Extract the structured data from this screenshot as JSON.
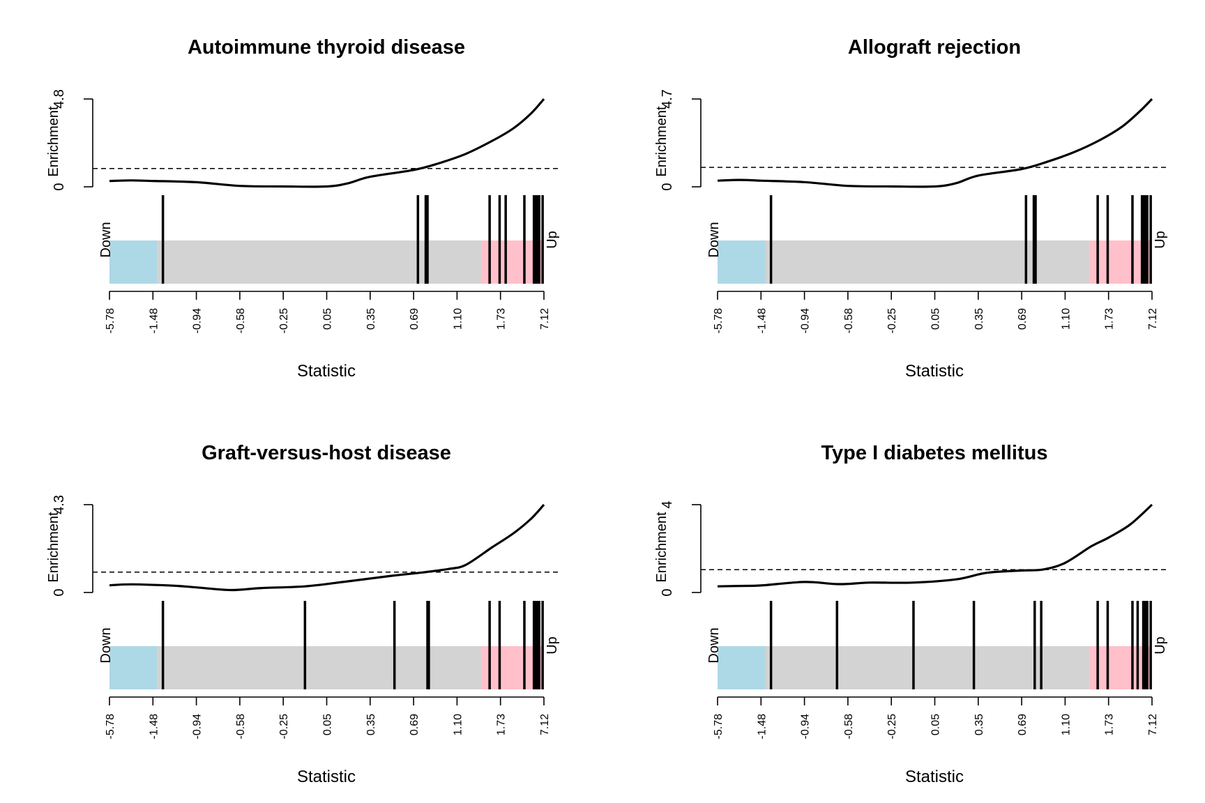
{
  "colors": {
    "down": "#add8e6",
    "middle": "#d3d3d3",
    "up": "#ffc0cb",
    "ink": "#000000"
  },
  "chart_data": [
    {
      "type": "barcode",
      "title": "Autoimmune thyroid disease",
      "ylabel": "Enrichment",
      "xlabel": "Statistic",
      "ylim": [
        0,
        4.8
      ],
      "ytick_labels": [
        "0",
        "4.8"
      ],
      "xtick_labels": [
        "-5.78",
        "-1.48",
        "-0.94",
        "-0.58",
        "-0.25",
        "0.05",
        "0.35",
        "0.69",
        "1.10",
        "1.73",
        "7.12"
      ],
      "down_label": "Down",
      "up_label": "Up",
      "down_end_rank": 0.11,
      "up_start_rank": 0.857,
      "baseline": 1.0,
      "curve": [
        [
          0,
          0.32
        ],
        [
          0.05,
          0.35
        ],
        [
          0.1,
          0.32
        ],
        [
          0.2,
          0.25
        ],
        [
          0.3,
          0.05
        ],
        [
          0.4,
          0.02
        ],
        [
          0.5,
          0.02
        ],
        [
          0.55,
          0.2
        ],
        [
          0.6,
          0.55
        ],
        [
          0.7,
          0.92
        ],
        [
          0.76,
          1.3
        ],
        [
          0.82,
          1.8
        ],
        [
          0.88,
          2.5
        ],
        [
          0.93,
          3.2
        ],
        [
          0.97,
          4.0
        ],
        [
          1.0,
          4.8
        ]
      ],
      "gene_ranks": [
        0.123,
        0.71,
        0.728,
        0.732,
        0.875,
        0.898,
        0.912,
        0.955,
        0.977,
        0.98,
        0.985,
        0.989,
        0.997
      ]
    },
    {
      "type": "barcode",
      "title": "Allograft rejection",
      "ylabel": "Enrichment",
      "xlabel": "Statistic",
      "ylim": [
        0,
        4.7
      ],
      "ytick_labels": [
        "0",
        "4.7"
      ],
      "xtick_labels": [
        "-5.78",
        "-1.48",
        "-0.94",
        "-0.58",
        "-0.25",
        "0.05",
        "0.35",
        "0.69",
        "1.10",
        "1.73",
        "7.12"
      ],
      "down_label": "Down",
      "up_label": "Up",
      "down_end_rank": 0.11,
      "up_start_rank": 0.857,
      "baseline": 1.04,
      "curve": [
        [
          0,
          0.33
        ],
        [
          0.05,
          0.37
        ],
        [
          0.1,
          0.33
        ],
        [
          0.2,
          0.25
        ],
        [
          0.3,
          0.05
        ],
        [
          0.4,
          0.02
        ],
        [
          0.5,
          0.02
        ],
        [
          0.55,
          0.2
        ],
        [
          0.6,
          0.6
        ],
        [
          0.7,
          0.95
        ],
        [
          0.76,
          1.35
        ],
        [
          0.82,
          1.85
        ],
        [
          0.88,
          2.5
        ],
        [
          0.93,
          3.2
        ],
        [
          0.97,
          4.0
        ],
        [
          1.0,
          4.7
        ]
      ],
      "gene_ranks": [
        0.123,
        0.71,
        0.728,
        0.732,
        0.875,
        0.898,
        0.955,
        0.977,
        0.98,
        0.985,
        0.989,
        0.997
      ]
    },
    {
      "type": "barcode",
      "title": "Graft-versus-host disease",
      "ylabel": "Enrichment",
      "xlabel": "Statistic",
      "ylim": [
        0,
        4.3
      ],
      "ytick_labels": [
        "0",
        "4.3"
      ],
      "xtick_labels": [
        "-5.78",
        "-1.48",
        "-0.94",
        "-0.58",
        "-0.25",
        "0.05",
        "0.35",
        "0.69",
        "1.10",
        "1.73",
        "7.12"
      ],
      "down_label": "Down",
      "up_label": "Up",
      "down_end_rank": 0.11,
      "up_start_rank": 0.857,
      "baseline": 1.0,
      "curve": [
        [
          0,
          0.35
        ],
        [
          0.05,
          0.4
        ],
        [
          0.15,
          0.33
        ],
        [
          0.2,
          0.25
        ],
        [
          0.28,
          0.12
        ],
        [
          0.35,
          0.22
        ],
        [
          0.45,
          0.3
        ],
        [
          0.55,
          0.55
        ],
        [
          0.65,
          0.82
        ],
        [
          0.72,
          0.98
        ],
        [
          0.78,
          1.15
        ],
        [
          0.82,
          1.35
        ],
        [
          0.88,
          2.2
        ],
        [
          0.93,
          2.9
        ],
        [
          0.97,
          3.6
        ],
        [
          1.0,
          4.3
        ]
      ],
      "gene_ranks": [
        0.123,
        0.45,
        0.656,
        0.732,
        0.735,
        0.875,
        0.898,
        0.955,
        0.977,
        0.98,
        0.985,
        0.989,
        0.997
      ]
    },
    {
      "type": "barcode",
      "title": "Type I diabetes mellitus",
      "ylabel": "Enrichment",
      "xlabel": "Statistic",
      "ylim": [
        0,
        4
      ],
      "ytick_labels": [
        "0",
        "4"
      ],
      "xtick_labels": [
        "-5.78",
        "-1.48",
        "-0.94",
        "-0.58",
        "-0.25",
        "0.05",
        "0.35",
        "0.69",
        "1.10",
        "1.73",
        "7.12"
      ],
      "down_label": "Down",
      "up_label": "Up",
      "down_end_rank": 0.11,
      "up_start_rank": 0.857,
      "baseline": 1.04,
      "curve": [
        [
          0,
          0.28
        ],
        [
          0.05,
          0.3
        ],
        [
          0.1,
          0.32
        ],
        [
          0.2,
          0.48
        ],
        [
          0.28,
          0.38
        ],
        [
          0.35,
          0.45
        ],
        [
          0.45,
          0.45
        ],
        [
          0.55,
          0.6
        ],
        [
          0.62,
          0.9
        ],
        [
          0.7,
          1.0
        ],
        [
          0.75,
          1.05
        ],
        [
          0.8,
          1.35
        ],
        [
          0.86,
          2.1
        ],
        [
          0.9,
          2.5
        ],
        [
          0.95,
          3.1
        ],
        [
          1.0,
          4.0
        ]
      ],
      "gene_ranks": [
        0.123,
        0.275,
        0.451,
        0.59,
        0.73,
        0.745,
        0.875,
        0.898,
        0.955,
        0.967,
        0.98,
        0.985,
        0.989,
        0.997
      ]
    }
  ]
}
